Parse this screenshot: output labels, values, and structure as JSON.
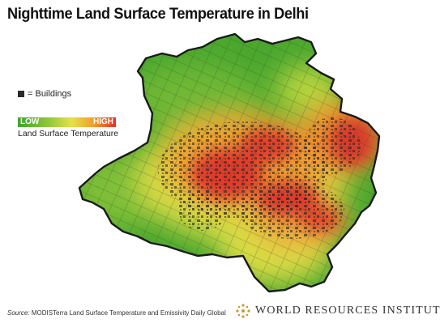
{
  "title": "Nighttime Land Surface Temperature in Delhi",
  "legend": {
    "buildings_label": "= Buildings",
    "scale_low": "LOW",
    "scale_high": "HIGH",
    "scale_caption": "Land Surface Temperature",
    "gradient_colors": [
      "#3ea52b",
      "#8dc63a",
      "#e5e14a",
      "#f39a2a",
      "#e3302a"
    ]
  },
  "source": {
    "label": "Source:",
    "text": "MODISTerra Land Surface Temperature and Emissivity Daily Global"
  },
  "brand": {
    "name": "WORLD RESOURCES INSTITUTE",
    "logo_icon": "wri-starburst-icon",
    "logo_color": "#c69a3a"
  },
  "map": {
    "region": "Delhi",
    "border_color": "#1a1a1a",
    "buildings_color": "#2a2a2a"
  }
}
